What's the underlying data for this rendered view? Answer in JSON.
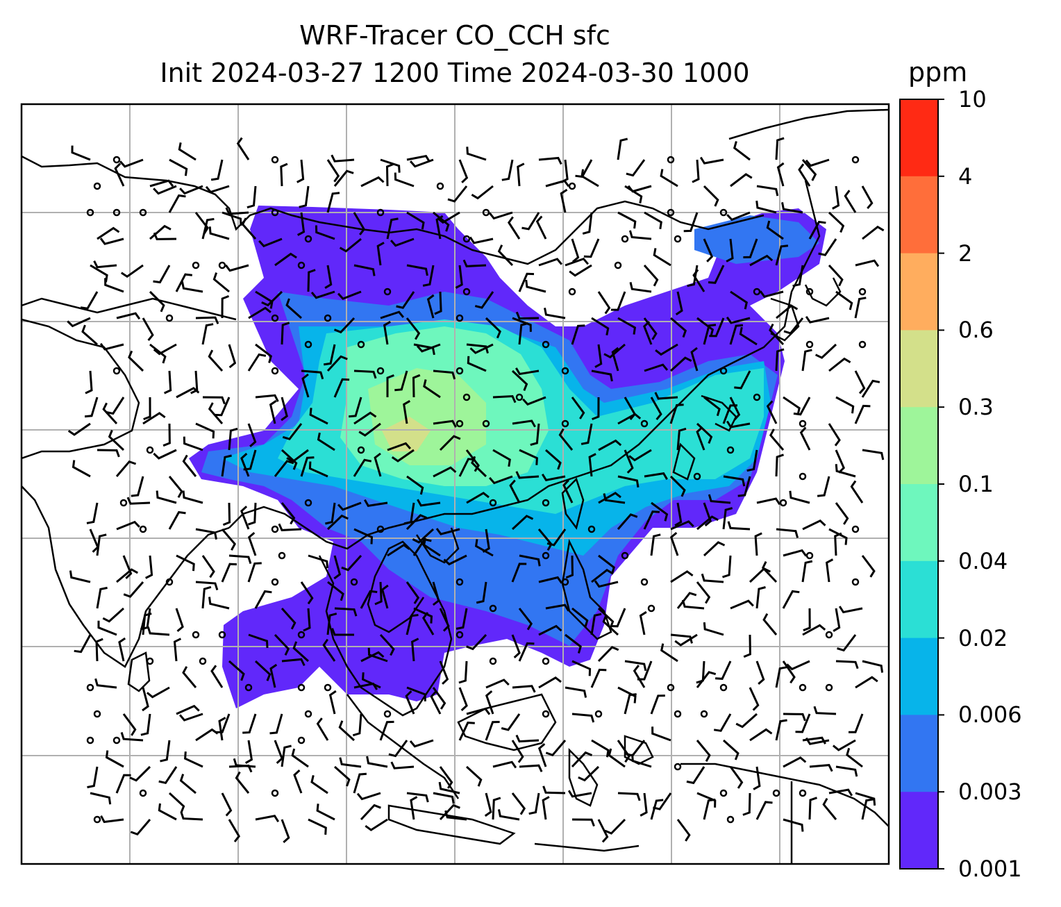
{
  "title": {
    "line1": "WRF-Tracer CO_CCH sfc",
    "line2": "Init 2024-03-27 1200 Time 2024-03-30 1000"
  },
  "colorbar": {
    "units": "ppm",
    "levels": [
      {
        "label": "10",
        "color": "#ff2a14"
      },
      {
        "label": "4",
        "color": "#ff6e3a"
      },
      {
        "label": "2",
        "color": "#ffad5e"
      },
      {
        "label": "0.6",
        "color": "#d3e08a"
      },
      {
        "label": "0.3",
        "color": "#9ef59a"
      },
      {
        "label": "0.1",
        "color": "#6ef7bd"
      },
      {
        "label": "0.04",
        "color": "#2bdfd5"
      },
      {
        "label": "0.02",
        "color": "#07b4ea"
      },
      {
        "label": "0.006",
        "color": "#3276f2"
      },
      {
        "label": "0.003",
        "color": "#6128fa"
      },
      {
        "label": "0.001",
        "color": ""
      }
    ]
  },
  "map": {
    "field": "CO_CCH tracer surface concentration",
    "gridlines": true,
    "overlay": "wind barbs"
  }
}
